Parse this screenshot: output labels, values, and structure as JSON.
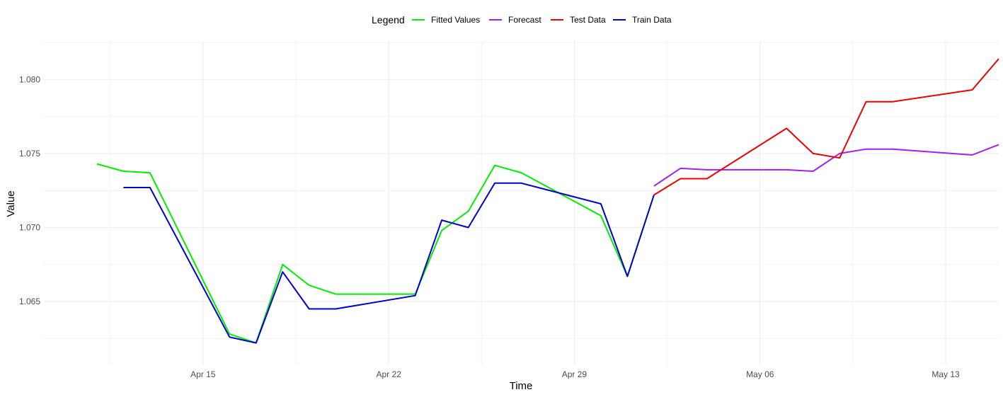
{
  "chart_data": {
    "type": "line",
    "title": "",
    "xlabel": "Time",
    "ylabel": "Value",
    "legend": {
      "title": "Legend",
      "position": "top"
    },
    "grid": true,
    "x_ticks": [
      "Apr 15",
      "Apr 22",
      "Apr 29",
      "May 06",
      "May 13"
    ],
    "y_ticks": [
      "1.065",
      "1.070",
      "1.075",
      "1.080"
    ],
    "xlim": [
      "2024-04-09",
      "2024-05-15"
    ],
    "ylim": [
      1.0607,
      1.0826
    ],
    "series": [
      {
        "name": "Fitted Values",
        "color": "#00ee00",
        "x": [
          "2024-04-11",
          "2024-04-12",
          "2024-04-13",
          "2024-04-16",
          "2024-04-17",
          "2024-04-18",
          "2024-04-19",
          "2024-04-20",
          "2024-04-23",
          "2024-04-24",
          "2024-04-25",
          "2024-04-26",
          "2024-04-27",
          "2024-04-30",
          "2024-05-01",
          "2024-05-02"
        ],
        "values": [
          1.0743,
          1.0738,
          1.0737,
          1.0628,
          1.0622,
          1.0675,
          1.0661,
          1.0655,
          1.0655,
          1.0698,
          1.0711,
          1.0742,
          1.0737,
          1.0708,
          1.0667,
          1.0722
        ]
      },
      {
        "name": "Forecast",
        "color": "#a020f0",
        "x": [
          "2024-05-02",
          "2024-05-03",
          "2024-05-04",
          "2024-05-07",
          "2024-05-08",
          "2024-05-09",
          "2024-05-10",
          "2024-05-11",
          "2024-05-14",
          "2024-05-15"
        ],
        "values": [
          1.0728,
          1.074,
          1.0739,
          1.0739,
          1.0738,
          1.075,
          1.0753,
          1.0753,
          1.0749,
          1.0756
        ]
      },
      {
        "name": "Test Data",
        "color": "#ee0000",
        "x": [
          "2024-05-02",
          "2024-05-03",
          "2024-05-04",
          "2024-05-07",
          "2024-05-08",
          "2024-05-09",
          "2024-05-10",
          "2024-05-11",
          "2024-05-14",
          "2024-05-15"
        ],
        "values": [
          1.0722,
          1.0733,
          1.0733,
          1.0767,
          1.075,
          1.0747,
          1.0785,
          1.0785,
          1.0793,
          1.0814
        ]
      },
      {
        "name": "Train Data",
        "color": "#0000cd",
        "x": [
          "2024-04-12",
          "2024-04-13",
          "2024-04-16",
          "2024-04-17",
          "2024-04-18",
          "2024-04-19",
          "2024-04-20",
          "2024-04-23",
          "2024-04-24",
          "2024-04-25",
          "2024-04-26",
          "2024-04-27",
          "2024-04-30",
          "2024-05-01",
          "2024-05-02"
        ],
        "values": [
          1.0727,
          1.0727,
          1.0626,
          1.0622,
          1.067,
          1.0645,
          1.0645,
          1.0654,
          1.0705,
          1.07,
          1.073,
          1.073,
          1.0716,
          1.0667,
          1.0722
        ]
      }
    ]
  }
}
